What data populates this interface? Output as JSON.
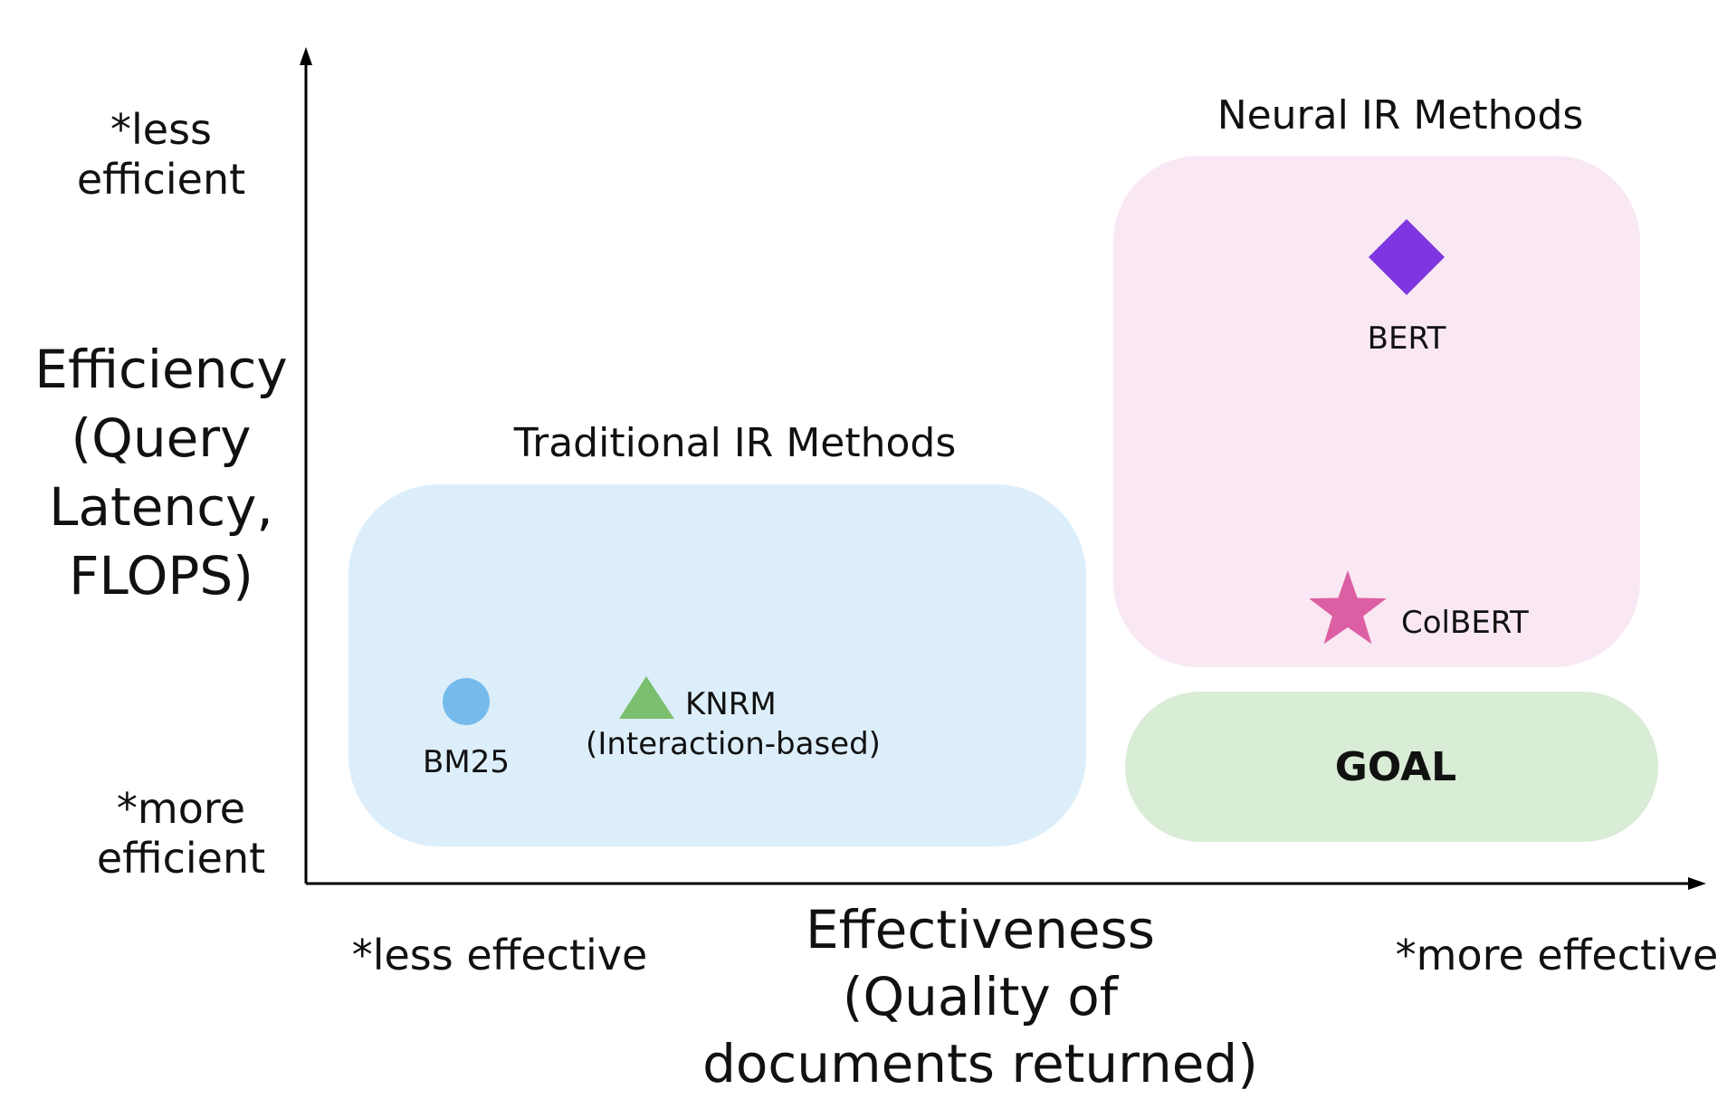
{
  "axes": {
    "y_title_lines": [
      "Efficiency",
      "(Query",
      "Latency,",
      "FLOPS)"
    ],
    "x_title_lines": [
      "Effectiveness",
      "(Quality of",
      "documents returned)"
    ],
    "y_top_note_lines": [
      "*less",
      "efficient"
    ],
    "y_bottom_note_lines": [
      "*more",
      "efficient"
    ],
    "x_left_note": "*less effective",
    "x_right_note": "*more effective"
  },
  "regions": {
    "traditional": {
      "title": "Traditional IR Methods",
      "color": "#ddeefb"
    },
    "neural": {
      "title": "Neural IR Methods",
      "color": "#f9e8f3"
    },
    "goal": {
      "label": "GOAL",
      "color": "#d9ecd5"
    }
  },
  "methods": {
    "bm25": {
      "label": "BM25",
      "marker": "circle",
      "color": "#74bbeb"
    },
    "knrm": {
      "label_lines": [
        "KNRM",
        "(Interaction-based)"
      ],
      "marker": "triangle",
      "color": "#7bbf6e"
    },
    "bert": {
      "label": "BERT",
      "marker": "diamond",
      "color": "#7e37e0"
    },
    "colbert": {
      "label": "ColBERT",
      "marker": "star",
      "color": "#dd5fa3"
    }
  },
  "colors": {
    "axis": "#000000"
  }
}
